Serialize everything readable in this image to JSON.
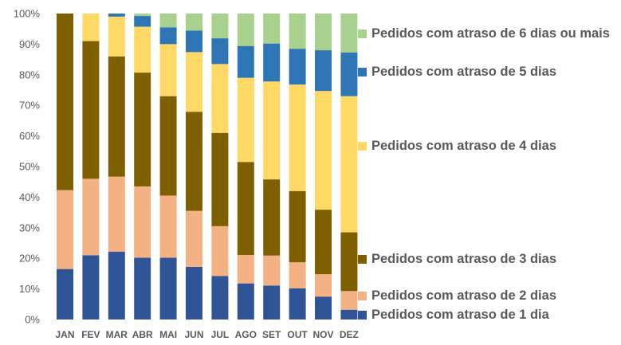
{
  "chart_data": {
    "type": "bar",
    "stacked": true,
    "percent": true,
    "categories": [
      "JAN",
      "FEV",
      "MAR",
      "ABR",
      "MAI",
      "JUN",
      "JUL",
      "AGO",
      "SET",
      "OUT",
      "NOV",
      "DEZ"
    ],
    "ylim": [
      0,
      100
    ],
    "yticks": [
      "0%",
      "10%",
      "20%",
      "30%",
      "40%",
      "50%",
      "60%",
      "70%",
      "80%",
      "90%",
      "100%"
    ],
    "legend_position": "right",
    "series": [
      {
        "name": "Pedidos com atraso de 1 dia",
        "color": "#2F5597",
        "values": [
          16.5,
          21,
          22.2,
          20.2,
          20.2,
          17.2,
          14.2,
          11.8,
          11.1,
          10.2,
          7.5,
          3.2
        ]
      },
      {
        "name": "Pedidos com atraso de 2 dias",
        "color": "#F4B183",
        "values": [
          25.8,
          25,
          24.5,
          23.3,
          20.3,
          18.3,
          16.3,
          9.3,
          9.8,
          8.5,
          7.3,
          6.1
        ]
      },
      {
        "name": "Pedidos com atraso de 3 dias",
        "color": "#7F6000",
        "values": [
          57.7,
          45,
          39.3,
          37.2,
          32.5,
          32.4,
          30.5,
          30.4,
          24.9,
          23.3,
          21.1,
          19.2
        ]
      },
      {
        "name": "Pedidos com atraso de 4 dias",
        "color": "#FFD966",
        "values": [
          0,
          9,
          13,
          15,
          17,
          19.5,
          22.5,
          27.5,
          32,
          34.8,
          38.8,
          44.5
        ]
      },
      {
        "name": "Pedidos com atraso de 5 dias",
        "color": "#2E75B6",
        "values": [
          0,
          0,
          1,
          3.5,
          5.5,
          7,
          8.4,
          10.4,
          12.4,
          11.7,
          13.3,
          14.3
        ]
      },
      {
        "name": "Pedidos com atraso de 6 dias ou mais",
        "color": "#A9D18E",
        "values": [
          0,
          0,
          0,
          0.8,
          4.5,
          5.6,
          8.1,
          10.6,
          9.8,
          11.5,
          12,
          12.7
        ]
      }
    ],
    "legend": [
      {
        "series": 5,
        "label": "Pedidos com atraso de 6 dias ou mais"
      },
      {
        "series": 4,
        "label": "Pedidos com atraso de 5 dias"
      },
      {
        "series": 3,
        "label": "Pedidos com atraso de 4 dias"
      },
      {
        "series": 2,
        "label": "Pedidos com atraso de 3 dias"
      },
      {
        "series": 1,
        "label": "Pedidos com atraso de 2 dias"
      },
      {
        "series": 0,
        "label": "Pedidos com atraso de 1 dia"
      }
    ]
  }
}
